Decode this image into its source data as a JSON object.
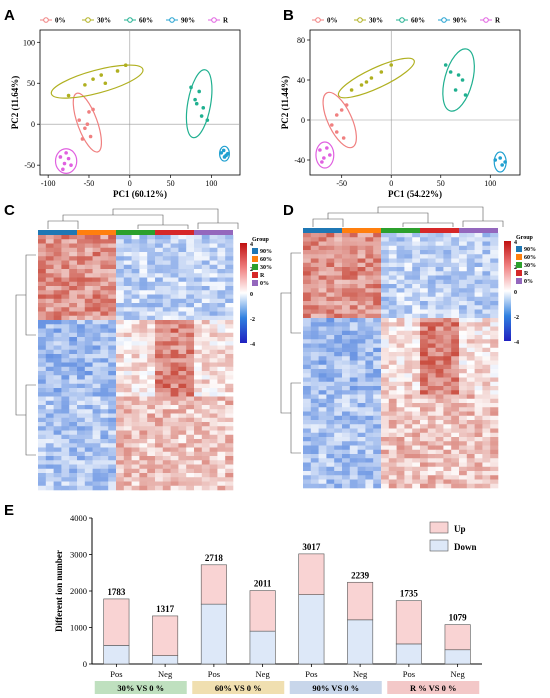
{
  "panels": {
    "a": "A",
    "b": "B",
    "c": "C",
    "d": "D",
    "e": "E"
  },
  "chart_data": [
    {
      "type": "scatter",
      "panel": "A",
      "xlabel": "PC1 (60.12%)",
      "ylabel": "PC2 (11.64%)",
      "xlim": [
        -110,
        135
      ],
      "ylim": [
        -62,
        115
      ],
      "xticks": [
        -100,
        -50,
        0,
        50,
        100
      ],
      "yticks": [
        -50,
        0,
        50,
        100
      ],
      "series": [
        {
          "name": "0%",
          "color": "#f08080",
          "points": [
            [
              -62,
              5
            ],
            [
              -50,
              15
            ],
            [
              -45,
              18
            ],
            [
              -55,
              -5
            ],
            [
              -48,
              -15
            ],
            [
              -58,
              -18
            ],
            [
              -52,
              0
            ]
          ],
          "ellipse": {
            "cx": -52,
            "cy": 2,
            "rx": 12,
            "ry": 38,
            "angle": -20
          }
        },
        {
          "name": "30%",
          "color": "#b0b020",
          "points": [
            [
              -75,
              35
            ],
            [
              -55,
              48
            ],
            [
              -45,
              55
            ],
            [
              -35,
              60
            ],
            [
              -15,
              65
            ],
            [
              -5,
              72
            ],
            [
              -30,
              50
            ]
          ],
          "ellipse": {
            "cx": -40,
            "cy": 52,
            "rx": 58,
            "ry": 14,
            "angle": -15
          }
        },
        {
          "name": "60%",
          "color": "#20b090",
          "points": [
            [
              75,
              45
            ],
            [
              85,
              40
            ],
            [
              80,
              30
            ],
            [
              90,
              20
            ],
            [
              88,
              10
            ],
            [
              95,
              5
            ],
            [
              82,
              25
            ]
          ],
          "ellipse": {
            "cx": 85,
            "cy": 25,
            "rx": 14,
            "ry": 42,
            "angle": 10
          }
        },
        {
          "name": "90%",
          "color": "#20a0d0",
          "points": [
            [
              112,
              -35
            ],
            [
              118,
              -38
            ],
            [
              115,
              -32
            ],
            [
              120,
              -36
            ],
            [
              116,
              -40
            ]
          ],
          "ellipse": {
            "cx": 116,
            "cy": -36,
            "rx": 6,
            "ry": 9,
            "angle": 0
          }
        },
        {
          "name": "R",
          "color": "#e060e0",
          "points": [
            [
              -85,
              -40
            ],
            [
              -80,
              -48
            ],
            [
              -75,
              -42
            ],
            [
              -78,
              -35
            ],
            [
              -72,
              -50
            ],
            [
              -82,
              -55
            ]
          ],
          "ellipse": {
            "cx": -78,
            "cy": -45,
            "rx": 13,
            "ry": 15,
            "angle": 0
          }
        }
      ]
    },
    {
      "type": "scatter",
      "panel": "B",
      "xlabel": "PC1 (54.22%)",
      "ylabel": "PC2 (11.44%)",
      "xlim": [
        -82,
        130
      ],
      "ylim": [
        -55,
        90
      ],
      "xticks": [
        -50,
        0,
        50,
        100
      ],
      "yticks": [
        -40,
        0,
        40,
        80
      ],
      "series": [
        {
          "name": "0%",
          "color": "#f08080",
          "points": [
            [
              -60,
              -5
            ],
            [
              -55,
              5
            ],
            [
              -50,
              10
            ],
            [
              -45,
              15
            ],
            [
              -55,
              -12
            ],
            [
              -48,
              -18
            ]
          ],
          "ellipse": {
            "cx": -52,
            "cy": 0,
            "rx": 12,
            "ry": 30,
            "angle": -25
          }
        },
        {
          "name": "30%",
          "color": "#b0b020",
          "points": [
            [
              -40,
              30
            ],
            [
              -30,
              35
            ],
            [
              -20,
              42
            ],
            [
              -10,
              48
            ],
            [
              0,
              55
            ],
            [
              -25,
              38
            ]
          ],
          "ellipse": {
            "cx": -15,
            "cy": 42,
            "rx": 42,
            "ry": 10,
            "angle": -25
          }
        },
        {
          "name": "60%",
          "color": "#20b090",
          "points": [
            [
              55,
              55
            ],
            [
              68,
              45
            ],
            [
              72,
              40
            ],
            [
              65,
              30
            ],
            [
              75,
              25
            ],
            [
              60,
              48
            ]
          ],
          "ellipse": {
            "cx": 68,
            "cy": 40,
            "rx": 14,
            "ry": 32,
            "angle": 15
          }
        },
        {
          "name": "90%",
          "color": "#20a0d0",
          "points": [
            [
              105,
              -40
            ],
            [
              112,
              -45
            ],
            [
              110,
              -38
            ],
            [
              115,
              -42
            ]
          ],
          "ellipse": {
            "cx": 110,
            "cy": -42,
            "rx": 6,
            "ry": 10,
            "angle": 0
          }
        },
        {
          "name": "R",
          "color": "#e060e0",
          "points": [
            [
              -72,
              -30
            ],
            [
              -68,
              -38
            ],
            [
              -65,
              -28
            ],
            [
              -70,
              -42
            ],
            [
              -62,
              -35
            ]
          ],
          "ellipse": {
            "cx": -67,
            "cy": -35,
            "rx": 9,
            "ry": 13,
            "angle": 0
          }
        }
      ]
    },
    {
      "type": "heatmap",
      "panel": "C",
      "color_scale": {
        "min": -4,
        "max": 4,
        "ticks": [
          4,
          2,
          0,
          -2,
          -4
        ],
        "colors": [
          "#2020c0",
          "#3080e0",
          "#ffffff",
          "#f08080",
          "#c01010"
        ]
      },
      "groups": [
        {
          "name": "90%",
          "color": "#1f77b4"
        },
        {
          "name": "60%",
          "color": "#ff7f0e"
        },
        {
          "name": "30%",
          "color": "#2ca02c"
        },
        {
          "name": "R",
          "color": "#d62728"
        },
        {
          "name": "0%",
          "color": "#9467bd"
        }
      ],
      "legend_title": "Group"
    },
    {
      "type": "heatmap",
      "panel": "D",
      "color_scale": {
        "min": -4,
        "max": 4,
        "ticks": [
          4,
          2,
          0,
          -2,
          -4
        ],
        "colors": [
          "#2020c0",
          "#3080e0",
          "#ffffff",
          "#f08080",
          "#c01010"
        ]
      },
      "groups": [
        {
          "name": "90%",
          "color": "#1f77b4"
        },
        {
          "name": "60%",
          "color": "#ff7f0e"
        },
        {
          "name": "30%",
          "color": "#2ca02c"
        },
        {
          "name": "R",
          "color": "#d62728"
        },
        {
          "name": "0%",
          "color": "#9467bd"
        }
      ],
      "legend_title": "Group"
    },
    {
      "type": "bar",
      "panel": "E",
      "ylabel": "Different ion number",
      "ylim": [
        0,
        4000
      ],
      "yticks": [
        0,
        1000,
        2000,
        3000,
        4000
      ],
      "categories": [
        "Pos",
        "Neg",
        "Pos",
        "Neg",
        "Pos",
        "Neg",
        "Pos",
        "Neg"
      ],
      "totals": [
        1783,
        1317,
        2718,
        2011,
        3017,
        2239,
        1735,
        1079
      ],
      "series": [
        {
          "name": "Down",
          "color": "#dde8f8",
          "values": [
            510,
            230,
            1640,
            900,
            1900,
            1210,
            550,
            390
          ]
        },
        {
          "name": "Up",
          "color": "#f9d3d3",
          "values": [
            1273,
            1087,
            1078,
            1111,
            1117,
            1029,
            1185,
            689
          ]
        }
      ],
      "comparisons": [
        {
          "label": "30% VS 0 %",
          "color": "#bfe0bf"
        },
        {
          "label": "60% VS 0 %",
          "color": "#f0dfb0"
        },
        {
          "label": "90% VS 0 %",
          "color": "#c8d6ea"
        },
        {
          "label": "R % VS 0 %",
          "color": "#f3c8c8"
        }
      ],
      "legend": [
        "Up",
        "Down"
      ]
    }
  ]
}
